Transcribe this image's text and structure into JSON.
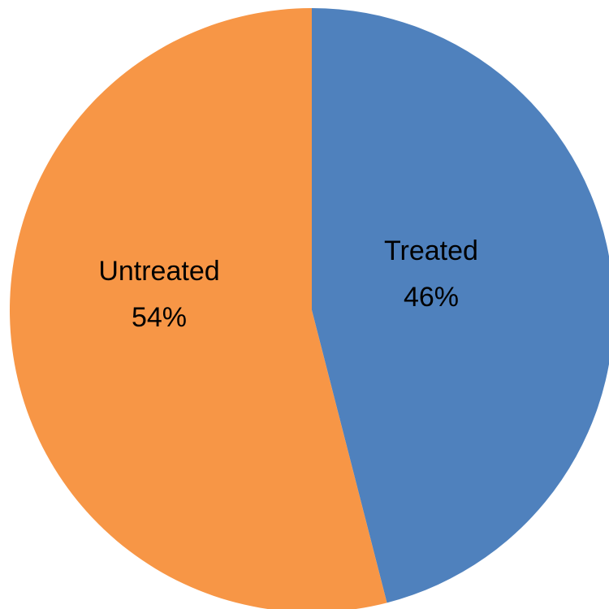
{
  "chart_data": {
    "type": "pie",
    "title": "",
    "slices": [
      {
        "label": "Treated",
        "value": 46,
        "value_label": "46%",
        "color": "#4F81BD"
      },
      {
        "label": "Untreated",
        "value": 54,
        "value_label": "54%",
        "color": "#F79646"
      }
    ],
    "start_angle": "12 o'clock",
    "direction": "clockwise",
    "legend": "none",
    "data_labels": "inside"
  }
}
